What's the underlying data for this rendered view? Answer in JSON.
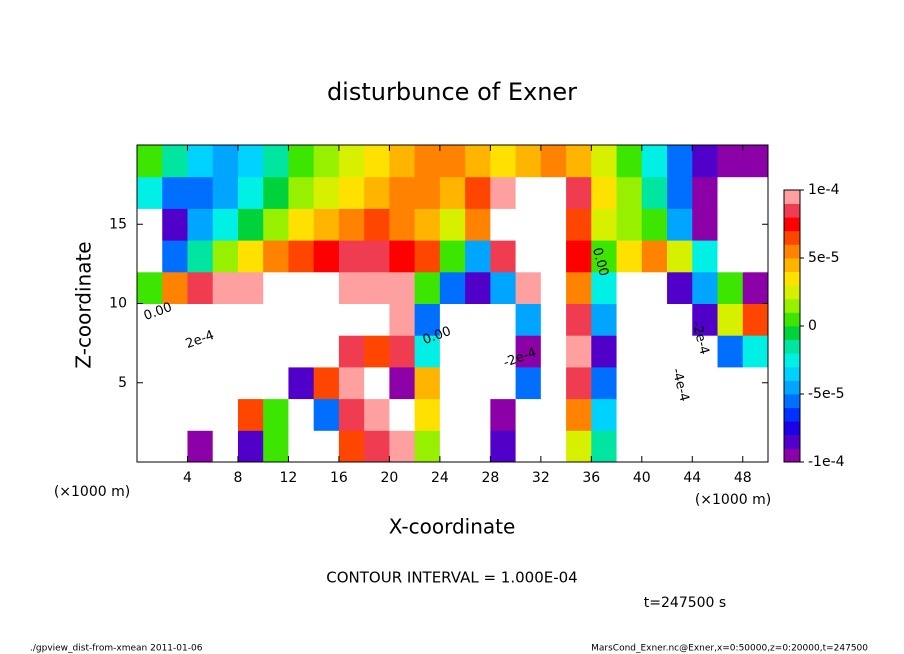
{
  "chart_data": {
    "type": "heatmap",
    "title": "disturbunce of Exner",
    "x_label": "X-coordinate",
    "y_label": "Z-coordinate",
    "x_unit": "(×1000 m)",
    "y_unit": "(×1000 m)",
    "contour_interval": "CONTOUR INTERVAL = 1.000E-04",
    "time_label": "t=247500 s",
    "footer_left": "./gpview_dist-from-xmean  2011-01-06",
    "footer_right": "MarsCond_Exner.nc@Exner,x=0:50000,z=0:20000,t=247500",
    "annotations": [
      "0.00",
      "0.00",
      "0.00",
      "2e-4",
      "-2e-4",
      "-2e-4",
      "-4e-4"
    ],
    "xlim": [
      0,
      50
    ],
    "ylim": [
      0,
      20
    ],
    "xticks": [
      4,
      8,
      12,
      16,
      20,
      24,
      28,
      32,
      36,
      40,
      44,
      48
    ],
    "yticks": [
      5,
      10,
      15
    ],
    "zlim": [
      -0.0001,
      0.0001
    ],
    "zticks": [
      {
        "value": 0.0001,
        "label": "1e-4"
      },
      {
        "value": 5e-05,
        "label": "5e-5"
      },
      0,
      {
        "value": -5e-05,
        "label": "-5e-5"
      },
      {
        "value": -0.0001,
        "label": "-1e-4"
      }
    ],
    "colorscale": [
      "#8c00a8",
      "#5000c8",
      "#1e00e6",
      "#0032ff",
      "#006eff",
      "#00a5ff",
      "#00d2ff",
      "#00f0e6",
      "#00e6a0",
      "#00d23c",
      "#3ce600",
      "#96f000",
      "#d7f000",
      "#ffe100",
      "#ffb400",
      "#ff8200",
      "#ff4600",
      "#ff0000",
      "#f03c50",
      "#ffa0a0"
    ],
    "out_of_range_color": "#ffffff",
    "x": [
      1,
      3,
      5,
      7,
      9,
      11,
      13,
      15,
      17,
      19,
      21,
      23,
      25,
      27,
      29,
      31,
      33,
      35,
      37,
      39,
      41,
      43,
      45,
      47,
      49
    ],
    "y": [
      1,
      3,
      5,
      7,
      9,
      11,
      13,
      15,
      17,
      19
    ],
    "z": [
      [
        0.00011,
        0.00013,
        -0.0001,
        -0.00014,
        -8e-05,
        0,
        -0.00018,
        -0.00016,
        6e-05,
        8e-05,
        0.0001,
        1e-05,
        -0.00012,
        -0.00012,
        -8e-05,
        -0.00014,
        0.00014,
        2e-05,
        -2e-05,
        -0.00012,
        -0.0002,
        -0.00016,
        -0.00012,
        -0.00014,
        -0.00012
      ],
      [
        0.00012,
        0.00014,
        -0.00012,
        0.00012,
        6e-05,
        0,
        -0.00014,
        -6e-05,
        8e-05,
        0.0001,
        0.00014,
        3e-05,
        -0.00012,
        -0.00014,
        -0.0001,
        -0.00014,
        0.00016,
        5e-05,
        -4e-05,
        -0.00016,
        -0.00028,
        -0.00026,
        -0.00016,
        -0.00012,
        -0.00014
      ],
      [
        0.00013,
        0.00017,
        0.00018,
        0.00016,
        0.00014,
        0.00012,
        -8e-05,
        6e-05,
        9e-05,
        0.00011,
        -0.0001,
        4e-05,
        -0.00012,
        -0.00018,
        -0.00014,
        -6e-05,
        0.00012,
        8e-05,
        -6e-05,
        -0.00018,
        -0.0003,
        -0.00032,
        -0.0002,
        -0.00018,
        -0.00012
      ],
      [
        0.00014,
        0.00018,
        0.00022,
        0.00022,
        0.0002,
        0.00018,
        0.00016,
        0.00012,
        8e-05,
        6e-05,
        8e-05,
        -3e-05,
        -0.00016,
        -0.00026,
        -0.00022,
        -0.0001,
        0.00014,
        0.0001,
        -8e-05,
        -0.0002,
        -0.00028,
        -0.00025,
        -0.00014,
        -6e-05,
        -3e-05
      ],
      [
        0.00012,
        0.00014,
        0.00016,
        0.00018,
        0.00018,
        0.00017,
        0.00015,
        0.00013,
        0.00012,
        0.00012,
        9e-05,
        -6e-05,
        -0.00014,
        -0.0002,
        -0.00018,
        -5e-05,
        0.00012,
        8e-05,
        -5e-05,
        -0.00018,
        -0.00022,
        -0.00016,
        -8e-05,
        2e-05,
        6e-05
      ],
      [
        0,
        5e-05,
        8e-05,
        9e-05,
        0.0001,
        0.00011,
        0.00011,
        0.00011,
        0.0001,
        9e-05,
        0.0001,
        0,
        -6e-05,
        -8e-05,
        -5e-05,
        0.0001,
        0.00015,
        5e-05,
        -3e-05,
        -0.00012,
        -0.00014,
        -8e-05,
        -5e-05,
        0,
        -0.0001
      ],
      [
        -0.00012,
        -6e-05,
        -2e-05,
        1e-05,
        3e-05,
        5e-05,
        6e-05,
        7e-05,
        8e-05,
        8e-05,
        7e-05,
        6e-05,
        0,
        -5e-05,
        8e-05,
        0.0002,
        0.00015,
        7e-05,
        0,
        3e-05,
        5e-05,
        2e-05,
        -3e-05,
        -0.00012,
        -0.00015
      ],
      [
        -0.00012,
        -8e-05,
        -5e-05,
        -3e-05,
        -1e-05,
        1e-05,
        3e-05,
        4e-05,
        5e-05,
        6e-05,
        5e-05,
        4e-05,
        2e-05,
        5e-05,
        0.00012,
        0.0002,
        0.00015,
        6e-05,
        2e-05,
        1e-05,
        0,
        -5e-05,
        -0.0001,
        -0.00014,
        -0.00014
      ],
      [
        -3e-05,
        -6e-05,
        -6e-05,
        -5e-05,
        -3e-05,
        -1e-05,
        1e-05,
        2e-05,
        3e-05,
        4e-05,
        5e-05,
        5e-05,
        4e-05,
        6e-05,
        9e-05,
        0.00015,
        0.0002,
        8e-05,
        3e-05,
        1e-05,
        -2e-05,
        -6e-05,
        -9e-05,
        -0.00012,
        -0.00012
      ],
      [
        0,
        -2e-05,
        -4e-05,
        -5e-05,
        -4e-05,
        -2e-05,
        0,
        1e-05,
        2e-05,
        3e-05,
        4e-05,
        5e-05,
        5e-05,
        4e-05,
        3e-05,
        4e-05,
        5e-05,
        4e-05,
        2e-05,
        0,
        -3e-05,
        -6e-05,
        -8e-05,
        -9e-05,
        -0.0001
      ]
    ]
  }
}
